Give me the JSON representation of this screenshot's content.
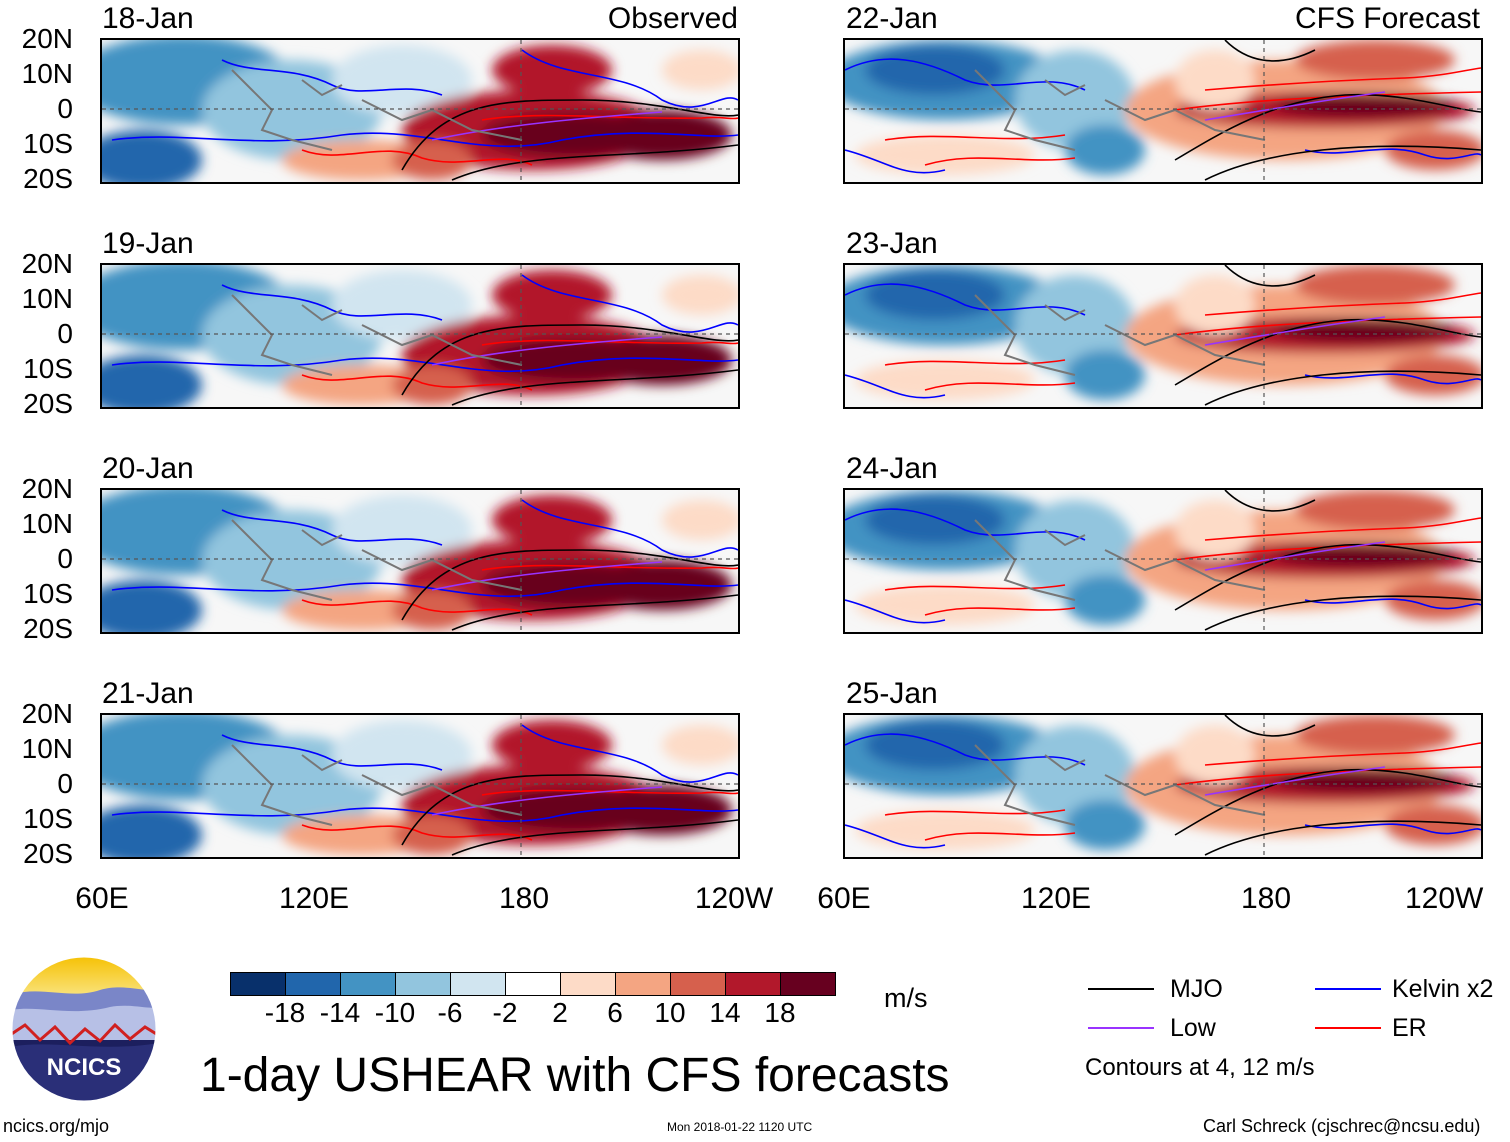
{
  "header": {
    "observed_label": "Observed",
    "forecast_label": "CFS Forecast"
  },
  "panels": {
    "observed": [
      {
        "date": "18-Jan"
      },
      {
        "date": "19-Jan"
      },
      {
        "date": "20-Jan"
      },
      {
        "date": "21-Jan"
      }
    ],
    "forecast": [
      {
        "date": "22-Jan"
      },
      {
        "date": "23-Jan"
      },
      {
        "date": "24-Jan"
      },
      {
        "date": "25-Jan"
      }
    ]
  },
  "axes": {
    "lat_labels": [
      "20N",
      "10N",
      "0",
      "10S",
      "20S"
    ],
    "lon_labels": [
      "60E",
      "120E",
      "180",
      "120W"
    ]
  },
  "colorbar": {
    "unit": "m/s",
    "tick_labels": [
      "-18",
      "-14",
      "-10",
      "-6",
      "-2",
      "2",
      "6",
      "10",
      "14",
      "18"
    ],
    "colors": [
      "#08306b",
      "#2166ac",
      "#4393c3",
      "#92c5de",
      "#d1e5f0",
      "#ffffff",
      "#fddbc7",
      "#f4a582",
      "#d6604d",
      "#b2182b",
      "#67001f"
    ]
  },
  "legend": {
    "items": [
      {
        "label": "MJO",
        "color": "#000000"
      },
      {
        "label": "Kelvin x2",
        "color": "#0000ff"
      },
      {
        "label": "Low",
        "color": "#9933ff"
      },
      {
        "label": "ER",
        "color": "#ff0000"
      }
    ],
    "note": "Contours at 4, 12 m/s"
  },
  "title": "1-day USHEAR with CFS forecasts",
  "logo_text": "NCICS",
  "footer": {
    "url": "ncics.org/mjo",
    "timestamp": "Mon 2018-01-22 1120 UTC",
    "credit": "Carl Schreck (cjschrec@ncsu.edu)"
  }
}
